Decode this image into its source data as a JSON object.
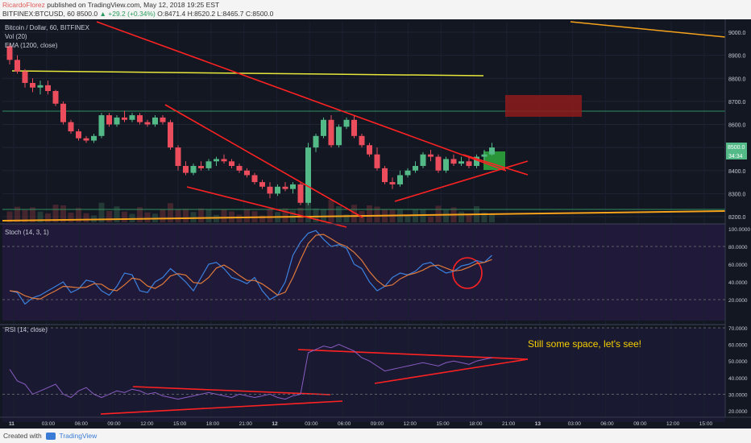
{
  "header": {
    "user": "RicardoFlorez",
    "published": "published on TradingView.com, May 12, 2018 19:25 EST",
    "symbol_line": "BITFINEX:BTCUSD, 60  8500.0",
    "change": "▲ +29.2 (+0.34%)",
    "ohlc": "O:8471.4 H:8520.2 L:8465.7 C:8500.0"
  },
  "legend": {
    "title": "Bitcoin / Dollar, 60, BITFINEX",
    "vol": "Vol (20)",
    "ema": "EMA (1200, close)"
  },
  "price_axis": {
    "labels": [
      "9000.0",
      "8900.0",
      "8800.0",
      "8700.0",
      "8600.0",
      "8500.0",
      "8400.0",
      "8300.0",
      "8200.0"
    ],
    "last_price": "8500.0",
    "countdown": "34:34"
  },
  "stoch": {
    "label": "Stoch (14, 3, 1)",
    "axis": [
      "100.0000",
      "80.0000",
      "60.0000",
      "40.0000",
      "20.0000"
    ]
  },
  "rsi": {
    "label": "RSI (14, close)",
    "axis": [
      "70.0000",
      "60.0000",
      "50.0000",
      "40.0000",
      "30.0000",
      "20.0000"
    ],
    "note": "Still some space, let's see!"
  },
  "time_axis": [
    "11",
    "03:00",
    "06:00",
    "09:00",
    "12:00",
    "15:00",
    "18:00",
    "21:00",
    "12",
    "03:00",
    "06:00",
    "09:00",
    "12:00",
    "15:00",
    "18:00",
    "21:00",
    "13",
    "03:00",
    "06:00",
    "09:00",
    "12:00",
    "15:00"
  ],
  "footer": {
    "created": "Created with",
    "brand": "TradingView"
  },
  "colors": {
    "bg": "#131722",
    "up": "#53b987",
    "down": "#eb4d5c",
    "drawn": "#ff2222",
    "ema": "#f7a21b",
    "yellow": "#e8e83a"
  },
  "chart_data": {
    "type": "candlestick",
    "candles": [
      [
        8940,
        8950,
        8860,
        8880
      ],
      [
        8880,
        8900,
        8820,
        8830
      ],
      [
        8830,
        8840,
        8760,
        8780
      ],
      [
        8780,
        8800,
        8740,
        8760
      ],
      [
        8760,
        8790,
        8730,
        8770
      ],
      [
        8770,
        8790,
        8730,
        8745
      ],
      [
        8745,
        8750,
        8680,
        8690
      ],
      [
        8690,
        8700,
        8600,
        8610
      ],
      [
        8610,
        8620,
        8560,
        8570
      ],
      [
        8570,
        8580,
        8530,
        8540
      ],
      [
        8540,
        8550,
        8520,
        8530
      ],
      [
        8530,
        8560,
        8520,
        8550
      ],
      [
        8550,
        8650,
        8540,
        8640
      ],
      [
        8640,
        8650,
        8590,
        8600
      ],
      [
        8600,
        8640,
        8590,
        8630
      ],
      [
        8630,
        8660,
        8610,
        8620
      ],
      [
        8620,
        8650,
        8610,
        8640
      ],
      [
        8640,
        8650,
        8600,
        8610
      ],
      [
        8610,
        8620,
        8590,
        8600
      ],
      [
        8600,
        8640,
        8590,
        8630
      ],
      [
        8630,
        8640,
        8600,
        8610
      ],
      [
        8610,
        8620,
        8490,
        8500
      ],
      [
        8500,
        8510,
        8400,
        8420
      ],
      [
        8420,
        8440,
        8380,
        8390
      ],
      [
        8390,
        8430,
        8380,
        8420
      ],
      [
        8420,
        8440,
        8400,
        8410
      ],
      [
        8410,
        8450,
        8400,
        8440
      ],
      [
        8440,
        8460,
        8420,
        8450
      ],
      [
        8450,
        8470,
        8430,
        8440
      ],
      [
        8440,
        8450,
        8410,
        8420
      ],
      [
        8420,
        8430,
        8390,
        8400
      ],
      [
        8400,
        8410,
        8370,
        8380
      ],
      [
        8380,
        8390,
        8340,
        8350
      ],
      [
        8350,
        8360,
        8320,
        8330
      ],
      [
        8330,
        8350,
        8280,
        8300
      ],
      [
        8300,
        8340,
        8290,
        8330
      ],
      [
        8330,
        8350,
        8310,
        8320
      ],
      [
        8320,
        8350,
        8300,
        8340
      ],
      [
        8340,
        8350,
        8250,
        8260
      ],
      [
        8260,
        8520,
        8250,
        8500
      ],
      [
        8500,
        8560,
        8480,
        8550
      ],
      [
        8550,
        8630,
        8540,
        8620
      ],
      [
        8620,
        8640,
        8500,
        8510
      ],
      [
        8510,
        8600,
        8500,
        8590
      ],
      [
        8590,
        8630,
        8580,
        8620
      ],
      [
        8620,
        8640,
        8540,
        8550
      ],
      [
        8550,
        8560,
        8500,
        8510
      ],
      [
        8510,
        8520,
        8460,
        8470
      ],
      [
        8470,
        8500,
        8400,
        8410
      ],
      [
        8410,
        8420,
        8340,
        8350
      ],
      [
        8350,
        8370,
        8320,
        8340
      ],
      [
        8340,
        8400,
        8330,
        8380
      ],
      [
        8380,
        8410,
        8370,
        8400
      ],
      [
        8400,
        8440,
        8390,
        8420
      ],
      [
        8420,
        8480,
        8410,
        8470
      ],
      [
        8470,
        8490,
        8440,
        8460
      ],
      [
        8460,
        8470,
        8390,
        8400
      ],
      [
        8400,
        8460,
        8390,
        8450
      ],
      [
        8450,
        8470,
        8420,
        8430
      ],
      [
        8430,
        8460,
        8420,
        8440
      ],
      [
        8440,
        8460,
        8410,
        8420
      ],
      [
        8420,
        8470,
        8410,
        8460
      ],
      [
        8460,
        8490,
        8440,
        8470
      ],
      [
        8470,
        8520,
        8465,
        8500
      ]
    ],
    "ema": [
      8190,
      8225
    ],
    "yellow_level": 8800
  }
}
